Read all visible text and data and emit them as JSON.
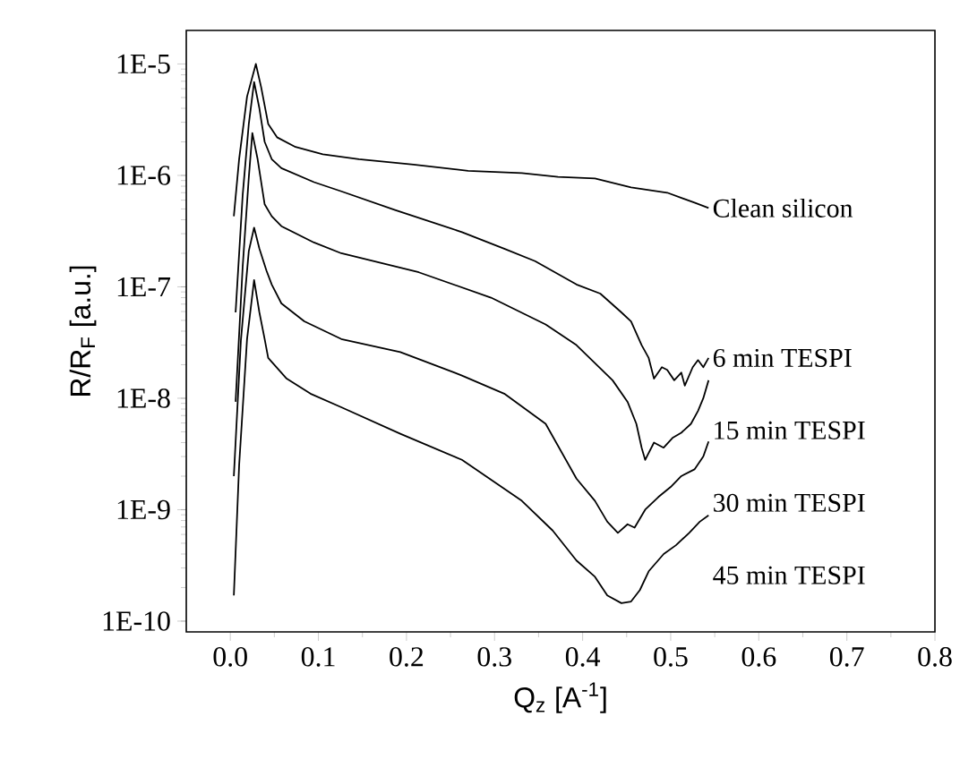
{
  "chart_data": {
    "type": "line",
    "xlabel": "Q$_{z}$ [A$^{-1}$]",
    "ylabel": "R/R$_{F}$ [a.u.]",
    "log": "y",
    "line_style": "solid",
    "xlim": [
      -0.05,
      0.8
    ],
    "ylim": [
      8e-11,
      2e-05
    ],
    "xticks": [
      {
        "value": 0,
        "label": "0.0"
      },
      0.1,
      0.2,
      0.3,
      0.4,
      0.5,
      0.6,
      0.7,
      0.8
    ],
    "yticks": [
      {
        "value": 1e-10,
        "label": "1E-10"
      },
      {
        "value": 1e-09,
        "label": "1E-9"
      },
      {
        "value": 1e-08,
        "label": "1E-8"
      },
      {
        "value": 1e-07,
        "label": "1E-7"
      },
      {
        "value": 1e-06,
        "label": "1E-6"
      },
      {
        "value": 1e-05,
        "label": "1E-5"
      }
    ],
    "series": [
      {
        "name": "Clean silicon",
        "color": "#000000",
        "x": [
          0.004,
          0.01,
          0.019,
          0.029,
          0.035,
          0.043,
          0.053,
          0.074,
          0.105,
          0.146,
          0.208,
          0.27,
          0.331,
          0.372,
          0.414,
          0.455,
          0.496,
          0.527,
          0.543
        ],
        "values": [
          4.3e-07,
          1.4e-06,
          5.1e-06,
          1e-05,
          6.2e-06,
          2.9e-06,
          2.2e-06,
          1.8e-06,
          1.55e-06,
          1.4e-06,
          1.25e-06,
          1.1e-06,
          1.05e-06,
          9.7e-07,
          9.4e-07,
          7.8e-07,
          7e-07,
          5.7e-07,
          5.1e-07
        ]
      },
      {
        "name": "6 min TESPI",
        "color": "#000000",
        "x": [
          0.006,
          0.014,
          0.021,
          0.027,
          0.033,
          0.039,
          0.047,
          0.058,
          0.095,
          0.126,
          0.187,
          0.263,
          0.311,
          0.346,
          0.393,
          0.42,
          0.444,
          0.455,
          0.467,
          0.475,
          0.481,
          0.49,
          0.496,
          0.504,
          0.512,
          0.516,
          0.525,
          0.531,
          0.537,
          0.543
        ],
        "values": [
          5.9e-08,
          6.6e-07,
          2.9e-06,
          6.9e-06,
          4e-06,
          2e-06,
          1.4e-06,
          1.16e-06,
          8.7e-07,
          7.2e-07,
          4.9e-07,
          3.1e-07,
          2.2e-07,
          1.7e-07,
          1.05e-07,
          8.7e-08,
          5.9e-08,
          4.9e-08,
          3e-08,
          2.3e-08,
          1.5e-08,
          1.9e-08,
          1.8e-08,
          1.45e-08,
          1.7e-08,
          1.3e-08,
          1.9e-08,
          2.2e-08,
          1.9e-08,
          2.3e-08
        ]
      },
      {
        "name": "15 min TESPI",
        "color": "#000000",
        "x": [
          0.006,
          0.014,
          0.021,
          0.025,
          0.031,
          0.039,
          0.047,
          0.058,
          0.095,
          0.126,
          0.214,
          0.296,
          0.358,
          0.393,
          0.434,
          0.451,
          0.461,
          0.467,
          0.471,
          0.481,
          0.492,
          0.502,
          0.512,
          0.523,
          0.531,
          0.537,
          0.543
        ],
        "values": [
          9.3e-09,
          1.5e-07,
          9.6e-07,
          2.4e-06,
          1.4e-06,
          5.5e-07,
          4.3e-07,
          3.5e-07,
          2.5e-07,
          2e-07,
          1.35e-07,
          8e-08,
          4.6e-08,
          3e-08,
          1.45e-08,
          9.3e-09,
          5.9e-09,
          3.6e-09,
          2.8e-09,
          4e-09,
          3.6e-09,
          4.4e-09,
          4.9e-09,
          5.9e-09,
          7.7e-09,
          1e-08,
          1.45e-08
        ]
      },
      {
        "name": "30 min TESPI",
        "color": "#000000",
        "x": [
          0.004,
          0.012,
          0.021,
          0.027,
          0.033,
          0.041,
          0.047,
          0.058,
          0.084,
          0.126,
          0.193,
          0.263,
          0.311,
          0.358,
          0.393,
          0.414,
          0.428,
          0.44,
          0.451,
          0.459,
          0.471,
          0.486,
          0.5,
          0.512,
          0.527,
          0.537,
          0.543
        ],
        "values": [
          2e-09,
          3.3e-08,
          2.1e-07,
          3.4e-07,
          2.2e-07,
          1.4e-07,
          1.05e-07,
          7.1e-08,
          4.9e-08,
          3.4e-08,
          2.6e-08,
          1.6e-08,
          1.1e-08,
          5.9e-09,
          1.9e-09,
          1.2e-09,
          7.8e-10,
          6.2e-10,
          7.4e-10,
          6.9e-10,
          1e-09,
          1.3e-09,
          1.6e-09,
          2e-09,
          2.3e-09,
          3e-09,
          4.1e-09
        ]
      },
      {
        "name": "45 min TESPI",
        "color": "#000000",
        "x": [
          0.004,
          0.01,
          0.019,
          0.027,
          0.033,
          0.039,
          0.043,
          0.064,
          0.091,
          0.126,
          0.193,
          0.263,
          0.331,
          0.366,
          0.393,
          0.414,
          0.428,
          0.444,
          0.455,
          0.465,
          0.475,
          0.492,
          0.506,
          0.521,
          0.533,
          0.543
        ],
        "values": [
          1.7e-10,
          2.5e-09,
          3.4e-08,
          1.15e-07,
          5.9e-08,
          3.4e-08,
          2.3e-08,
          1.5e-08,
          1.1e-08,
          8.3e-09,
          4.8e-09,
          2.8e-09,
          1.2e-09,
          6.5e-10,
          3.5e-10,
          2.5e-10,
          1.7e-10,
          1.45e-10,
          1.5e-10,
          1.9e-10,
          2.8e-10,
          4e-10,
          4.8e-10,
          6.2e-10,
          7.8e-10,
          8.9e-10
        ]
      }
    ]
  }
}
